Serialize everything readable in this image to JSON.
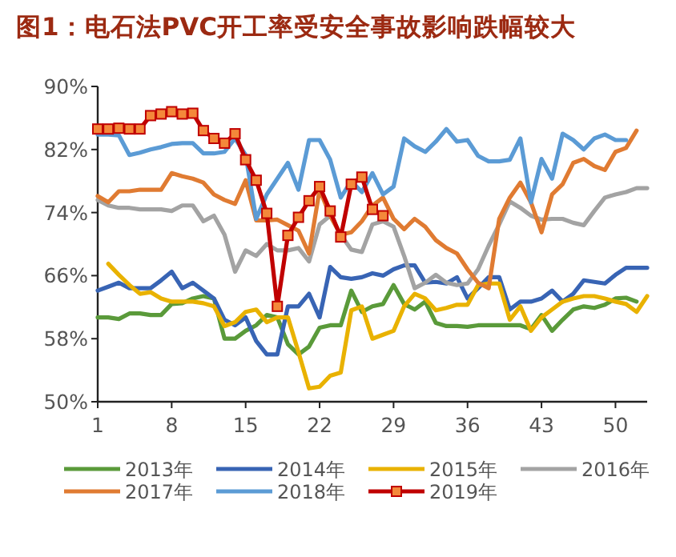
{
  "chart_data": {
    "type": "line",
    "title": "图1：电石法PVC开工率受安全事故影响跌幅较大",
    "x": [
      1,
      2,
      3,
      4,
      5,
      6,
      7,
      8,
      9,
      10,
      11,
      12,
      13,
      14,
      15,
      16,
      17,
      18,
      19,
      20,
      21,
      22,
      23,
      24,
      25,
      26,
      27,
      28,
      29,
      30,
      31,
      32,
      33,
      34,
      35,
      36,
      37,
      38,
      39,
      40,
      41,
      42,
      43,
      44,
      45,
      46,
      47,
      48,
      49,
      50,
      51,
      52,
      53
    ],
    "xlim": [
      1,
      53
    ],
    "ylim": [
      50,
      90
    ],
    "xticks": [
      1,
      8,
      15,
      22,
      29,
      36,
      43,
      50
    ],
    "yticks": [
      {
        "value": 50,
        "label": "50%"
      },
      {
        "value": 58,
        "label": "58%"
      },
      {
        "value": 66,
        "label": "66%"
      },
      {
        "value": 74,
        "label": "74%"
      },
      {
        "value": 82,
        "label": "82%"
      },
      {
        "value": 90,
        "label": "90%"
      }
    ],
    "legend": "bottom",
    "grid": false,
    "series": [
      {
        "name": "2013年",
        "color": "#5a9a3a",
        "marker": "none",
        "values": [
          60.7,
          60.7,
          60.5,
          61.2,
          61.2,
          61.0,
          61.0,
          62.4,
          62.5,
          63.1,
          63.4,
          63.1,
          58.0,
          58.0,
          59.0,
          59.7,
          61.0,
          60.7,
          57.3,
          56.0,
          57.0,
          59.4,
          59.7,
          59.7,
          64.1,
          61.4,
          62.1,
          62.4,
          64.8,
          62.4,
          61.7,
          62.7,
          60.0,
          59.6,
          59.6,
          59.5,
          59.7,
          59.7,
          59.7,
          59.7,
          59.7,
          59.2,
          61.0,
          59.0,
          60.4,
          61.7,
          62.1,
          61.9,
          62.3,
          63.1,
          63.2,
          62.7,
          null
        ]
      },
      {
        "name": "2014年",
        "color": "#3864b4",
        "marker": "none",
        "values": [
          64.1,
          64.6,
          65.1,
          64.4,
          64.4,
          64.4,
          65.4,
          66.5,
          64.4,
          65.1,
          64.1,
          63.1,
          60.4,
          59.7,
          60.7,
          57.7,
          56.0,
          56.0,
          62.1,
          62.1,
          63.7,
          60.7,
          67.1,
          65.8,
          65.6,
          65.8,
          66.3,
          66.0,
          66.8,
          67.3,
          67.3,
          65.1,
          65.2,
          65.0,
          65.8,
          63.1,
          64.4,
          65.8,
          65.8,
          61.7,
          62.7,
          62.7,
          63.1,
          64.1,
          62.7,
          63.7,
          65.4,
          65.2,
          65.0,
          66.1,
          67.0,
          67.0,
          67.0
        ]
      },
      {
        "name": "2015年",
        "color": "#e9b200",
        "marker": "none",
        "values": [
          null,
          67.5,
          66.1,
          64.8,
          63.7,
          63.9,
          63.1,
          62.7,
          62.7,
          62.7,
          62.5,
          62.1,
          59.6,
          60.1,
          61.4,
          61.7,
          60.1,
          60.7,
          60.7,
          56.3,
          51.7,
          51.9,
          53.3,
          53.7,
          61.6,
          62.1,
          58.0,
          58.5,
          59.0,
          62.1,
          63.7,
          63.1,
          61.6,
          61.9,
          62.3,
          62.3,
          64.8,
          65.0,
          65.0,
          60.4,
          62.1,
          59.0,
          60.7,
          61.7,
          62.7,
          63.1,
          63.4,
          63.4,
          63.1,
          62.7,
          62.4,
          61.4,
          63.4
        ]
      },
      {
        "name": "2016年",
        "color": "#a3a3a3",
        "marker": "none",
        "values": [
          75.6,
          74.9,
          74.6,
          74.6,
          74.4,
          74.4,
          74.4,
          74.2,
          74.9,
          74.9,
          72.9,
          73.6,
          71.2,
          66.5,
          69.2,
          68.5,
          70.0,
          69.2,
          69.2,
          69.5,
          67.8,
          72.5,
          73.6,
          71.2,
          69.3,
          69.0,
          72.5,
          72.9,
          72.2,
          68.5,
          64.4,
          65.1,
          66.1,
          65.1,
          64.8,
          65.0,
          66.8,
          69.8,
          72.5,
          75.4,
          74.6,
          73.6,
          73.1,
          73.2,
          73.2,
          72.7,
          72.4,
          74.2,
          75.9,
          76.3,
          76.6,
          77.1,
          77.1
        ]
      },
      {
        "name": "2017年",
        "color": "#e07b32",
        "marker": "none",
        "values": [
          76.1,
          75.3,
          76.7,
          76.7,
          76.9,
          76.9,
          76.9,
          79.0,
          78.6,
          78.3,
          77.8,
          76.3,
          75.6,
          75.1,
          78.1,
          73.0,
          73.0,
          73.1,
          72.4,
          71.7,
          68.8,
          76.9,
          73.6,
          71.2,
          71.5,
          72.9,
          74.9,
          75.9,
          73.2,
          71.9,
          73.2,
          72.2,
          70.5,
          69.5,
          68.8,
          66.8,
          65.1,
          64.4,
          73.2,
          75.9,
          77.8,
          75.3,
          71.5,
          76.3,
          77.6,
          80.3,
          80.8,
          79.9,
          79.4,
          81.7,
          82.2,
          84.4,
          null
        ]
      },
      {
        "name": "2018年",
        "color": "#5b9bd5",
        "marker": "none",
        "values": [
          83.9,
          83.9,
          83.8,
          81.3,
          81.6,
          82.0,
          82.3,
          82.7,
          82.8,
          82.8,
          81.5,
          81.5,
          81.7,
          83.4,
          81.3,
          73.2,
          76.3,
          78.3,
          80.3,
          76.9,
          83.2,
          83.2,
          80.7,
          75.9,
          78.0,
          76.6,
          79.0,
          76.3,
          77.3,
          83.4,
          82.4,
          81.7,
          83.0,
          84.6,
          83.0,
          83.2,
          81.2,
          80.5,
          80.5,
          80.7,
          83.4,
          75.3,
          80.8,
          78.3,
          84.0,
          83.2,
          82.0,
          83.4,
          83.9,
          83.2,
          83.2,
          null,
          null
        ]
      },
      {
        "name": "2019年",
        "color": "#c00000",
        "marker": "square",
        "values": [
          84.6,
          84.6,
          84.7,
          84.6,
          84.6,
          86.3,
          86.5,
          86.8,
          86.5,
          86.6,
          84.4,
          83.4,
          82.8,
          84.0,
          80.7,
          78.1,
          73.9,
          62.1,
          71.1,
          73.4,
          75.5,
          77.3,
          74.2,
          70.9,
          77.6,
          78.5,
          74.4,
          73.6,
          null,
          null,
          null,
          null,
          null,
          null,
          null,
          null,
          null,
          null,
          null,
          null,
          null,
          null,
          null,
          null,
          null,
          null,
          null,
          null,
          null,
          null,
          null,
          null,
          null
        ]
      }
    ]
  }
}
